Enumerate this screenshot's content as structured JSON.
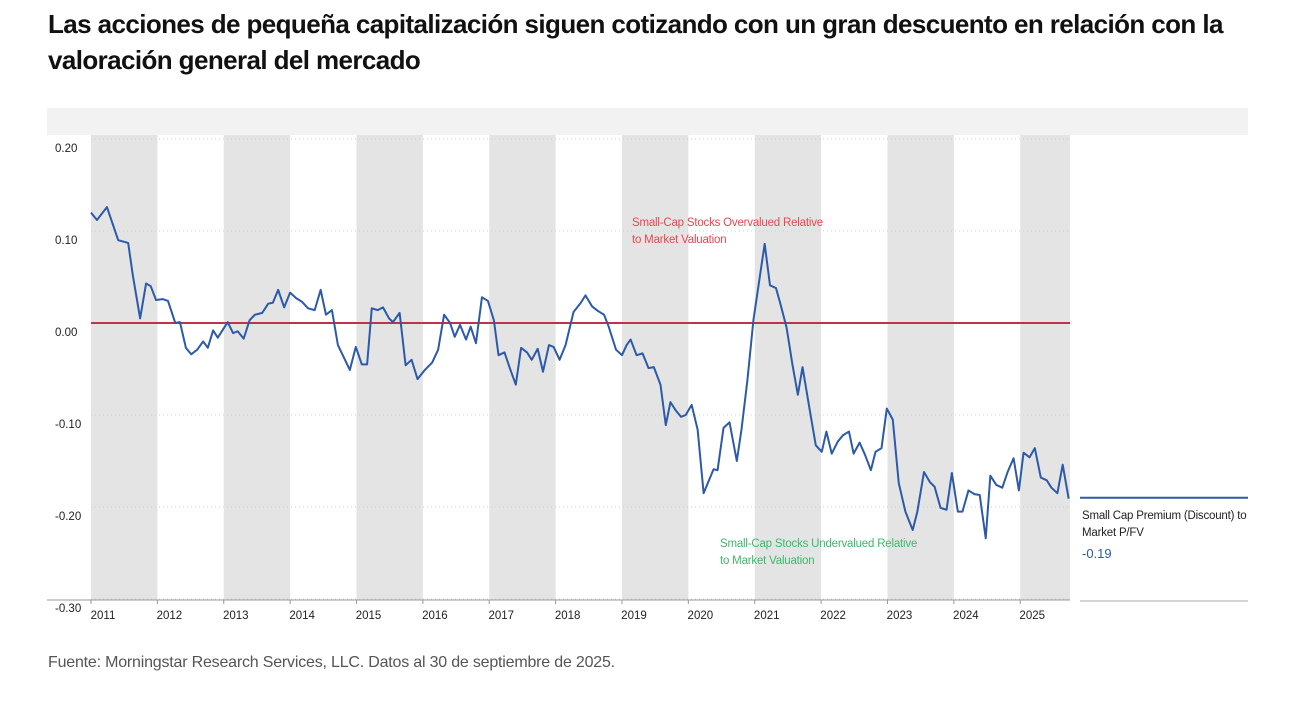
{
  "chart_data": {
    "type": "line",
    "title": "Las acciones de pequeña capitalización siguen cotizando con un gran descuento en relación con la valoración general del mercado",
    "source": "Fuente: Morningstar Research Services, LLC. Datos al 30 de septiembre de 2025.",
    "xlim": [
      2011,
      2025.75
    ],
    "xticks": [
      2011,
      2012,
      2013,
      2014,
      2015,
      2016,
      2017,
      2018,
      2019,
      2020,
      2021,
      2022,
      2023,
      2024,
      2025
    ],
    "ylim": [
      -0.3,
      0.2
    ],
    "yticks": [
      {
        "value": 0.2,
        "label": "0.20"
      },
      {
        "value": 0.1,
        "label": "0.10"
      },
      {
        "value": 0,
        "label": "0.00"
      },
      {
        "value": -0.1,
        "label": "-0.10"
      },
      {
        "value": -0.2,
        "label": "-0.20"
      },
      {
        "value": -0.3,
        "label": "-0.30"
      }
    ],
    "grid": true,
    "series": [
      {
        "name": "Small Cap Premium (Discount) to Market P/FV",
        "color": "#2c5aa8",
        "x": [
          2011.0,
          2011.09,
          2011.24,
          2011.41,
          2011.56,
          2011.63,
          2011.74,
          2011.83,
          2011.9,
          2011.98,
          2012.08,
          2012.16,
          2012.27,
          2012.34,
          2012.43,
          2012.51,
          2012.6,
          2012.69,
          2012.76,
          2012.84,
          2012.91,
          2013.06,
          2013.14,
          2013.21,
          2013.3,
          2013.39,
          2013.47,
          2013.58,
          2013.67,
          2013.74,
          2013.82,
          2013.91,
          2014.0,
          2014.09,
          2014.18,
          2014.27,
          2014.37,
          2014.46,
          2014.54,
          2014.63,
          2014.72,
          2014.9,
          2014.99,
          2015.08,
          2015.16,
          2015.23,
          2015.32,
          2015.4,
          2015.49,
          2015.55,
          2015.65,
          2015.74,
          2015.83,
          2015.92,
          2016.03,
          2016.14,
          2016.23,
          2016.32,
          2016.41,
          2016.48,
          2016.56,
          2016.65,
          2016.72,
          2016.8,
          2016.89,
          2016.98,
          2017.07,
          2017.14,
          2017.23,
          2017.31,
          2017.4,
          2017.48,
          2017.57,
          2017.64,
          2017.73,
          2017.81,
          2017.9,
          2017.97,
          2018.06,
          2018.15,
          2018.27,
          2018.38,
          2018.45,
          2018.55,
          2018.64,
          2018.73,
          2018.8,
          2018.91,
          2019.0,
          2019.07,
          2019.13,
          2019.22,
          2019.31,
          2019.4,
          2019.48,
          2019.58,
          2019.66,
          2019.73,
          2019.81,
          2019.89,
          2019.96,
          2020.05,
          2020.14,
          2020.23,
          2020.31,
          2020.38,
          2020.44,
          2020.53,
          2020.62,
          2020.73,
          2020.8,
          2020.89,
          2020.98,
          2021.08,
          2021.15,
          2021.23,
          2021.32,
          2021.39,
          2021.48,
          2021.57,
          2021.65,
          2021.72,
          2021.83,
          2021.92,
          2022.01,
          2022.08,
          2022.16,
          2022.25,
          2022.33,
          2022.42,
          2022.49,
          2022.58,
          2022.66,
          2022.75,
          2022.82,
          2022.91,
          2022.99,
          2023.08,
          2023.17,
          2023.27,
          2023.38,
          2023.45,
          2023.55,
          2023.64,
          2023.71,
          2023.8,
          2023.89,
          2023.97,
          2024.06,
          2024.13,
          2024.22,
          2024.31,
          2024.39,
          2024.48,
          2024.55,
          2024.64,
          2024.73,
          2024.81,
          2024.9,
          2024.98,
          2025.05,
          2025.14,
          2025.22,
          2025.31,
          2025.4,
          2025.47,
          2025.56,
          2025.64,
          2025.73
        ],
        "values": [
          0.12,
          0.112,
          0.126,
          0.09,
          0.087,
          0.052,
          0.005,
          0.043,
          0.04,
          0.025,
          0.026,
          0.024,
          0.0,
          0.001,
          -0.027,
          -0.034,
          -0.029,
          -0.02,
          -0.027,
          -0.008,
          -0.016,
          0.001,
          -0.011,
          -0.009,
          -0.017,
          0.003,
          0.009,
          0.011,
          0.021,
          0.022,
          0.036,
          0.017,
          0.033,
          0.027,
          0.023,
          0.016,
          0.014,
          0.036,
          0.009,
          0.014,
          -0.024,
          -0.051,
          -0.026,
          -0.045,
          -0.045,
          0.016,
          0.014,
          0.017,
          0.005,
          0.001,
          0.011,
          -0.046,
          -0.04,
          -0.061,
          -0.051,
          -0.043,
          -0.029,
          0.009,
          0.0,
          -0.015,
          -0.002,
          -0.018,
          -0.004,
          -0.022,
          0.028,
          0.024,
          0.003,
          -0.035,
          -0.032,
          -0.049,
          -0.067,
          -0.027,
          -0.032,
          -0.04,
          -0.028,
          -0.053,
          -0.024,
          -0.026,
          -0.04,
          -0.024,
          0.012,
          0.022,
          0.03,
          0.018,
          0.013,
          0.009,
          -0.004,
          -0.029,
          -0.035,
          -0.024,
          -0.018,
          -0.035,
          -0.033,
          -0.049,
          -0.048,
          -0.067,
          -0.111,
          -0.086,
          -0.095,
          -0.102,
          -0.1,
          -0.089,
          -0.116,
          -0.185,
          -0.171,
          -0.159,
          -0.16,
          -0.114,
          -0.108,
          -0.15,
          -0.116,
          -0.062,
          0.003,
          0.052,
          0.086,
          0.041,
          0.038,
          0.02,
          -0.005,
          -0.046,
          -0.078,
          -0.048,
          -0.095,
          -0.133,
          -0.14,
          -0.118,
          -0.142,
          -0.129,
          -0.122,
          -0.118,
          -0.142,
          -0.13,
          -0.143,
          -0.16,
          -0.14,
          -0.136,
          -0.093,
          -0.105,
          -0.174,
          -0.205,
          -0.225,
          -0.205,
          -0.162,
          -0.173,
          -0.178,
          -0.201,
          -0.203,
          -0.163,
          -0.205,
          -0.205,
          -0.182,
          -0.186,
          -0.187,
          -0.234,
          -0.166,
          -0.176,
          -0.179,
          -0.162,
          -0.147,
          -0.182,
          -0.141,
          -0.146,
          -0.136,
          -0.168,
          -0.171,
          -0.179,
          -0.185,
          -0.154,
          -0.191
        ],
        "end_label": {
          "value": -0.19,
          "label": "-0.19"
        }
      }
    ],
    "annotations": [
      {
        "lines": [
          "Small-Cap Stocks Overvalued Relative",
          "to Market Valuation"
        ],
        "color": "#e8474f"
      },
      {
        "lines": [
          "Small-Cap Stocks Undervalued Relative",
          "to Market Valuation"
        ],
        "color": "#3cb96a"
      }
    ]
  }
}
